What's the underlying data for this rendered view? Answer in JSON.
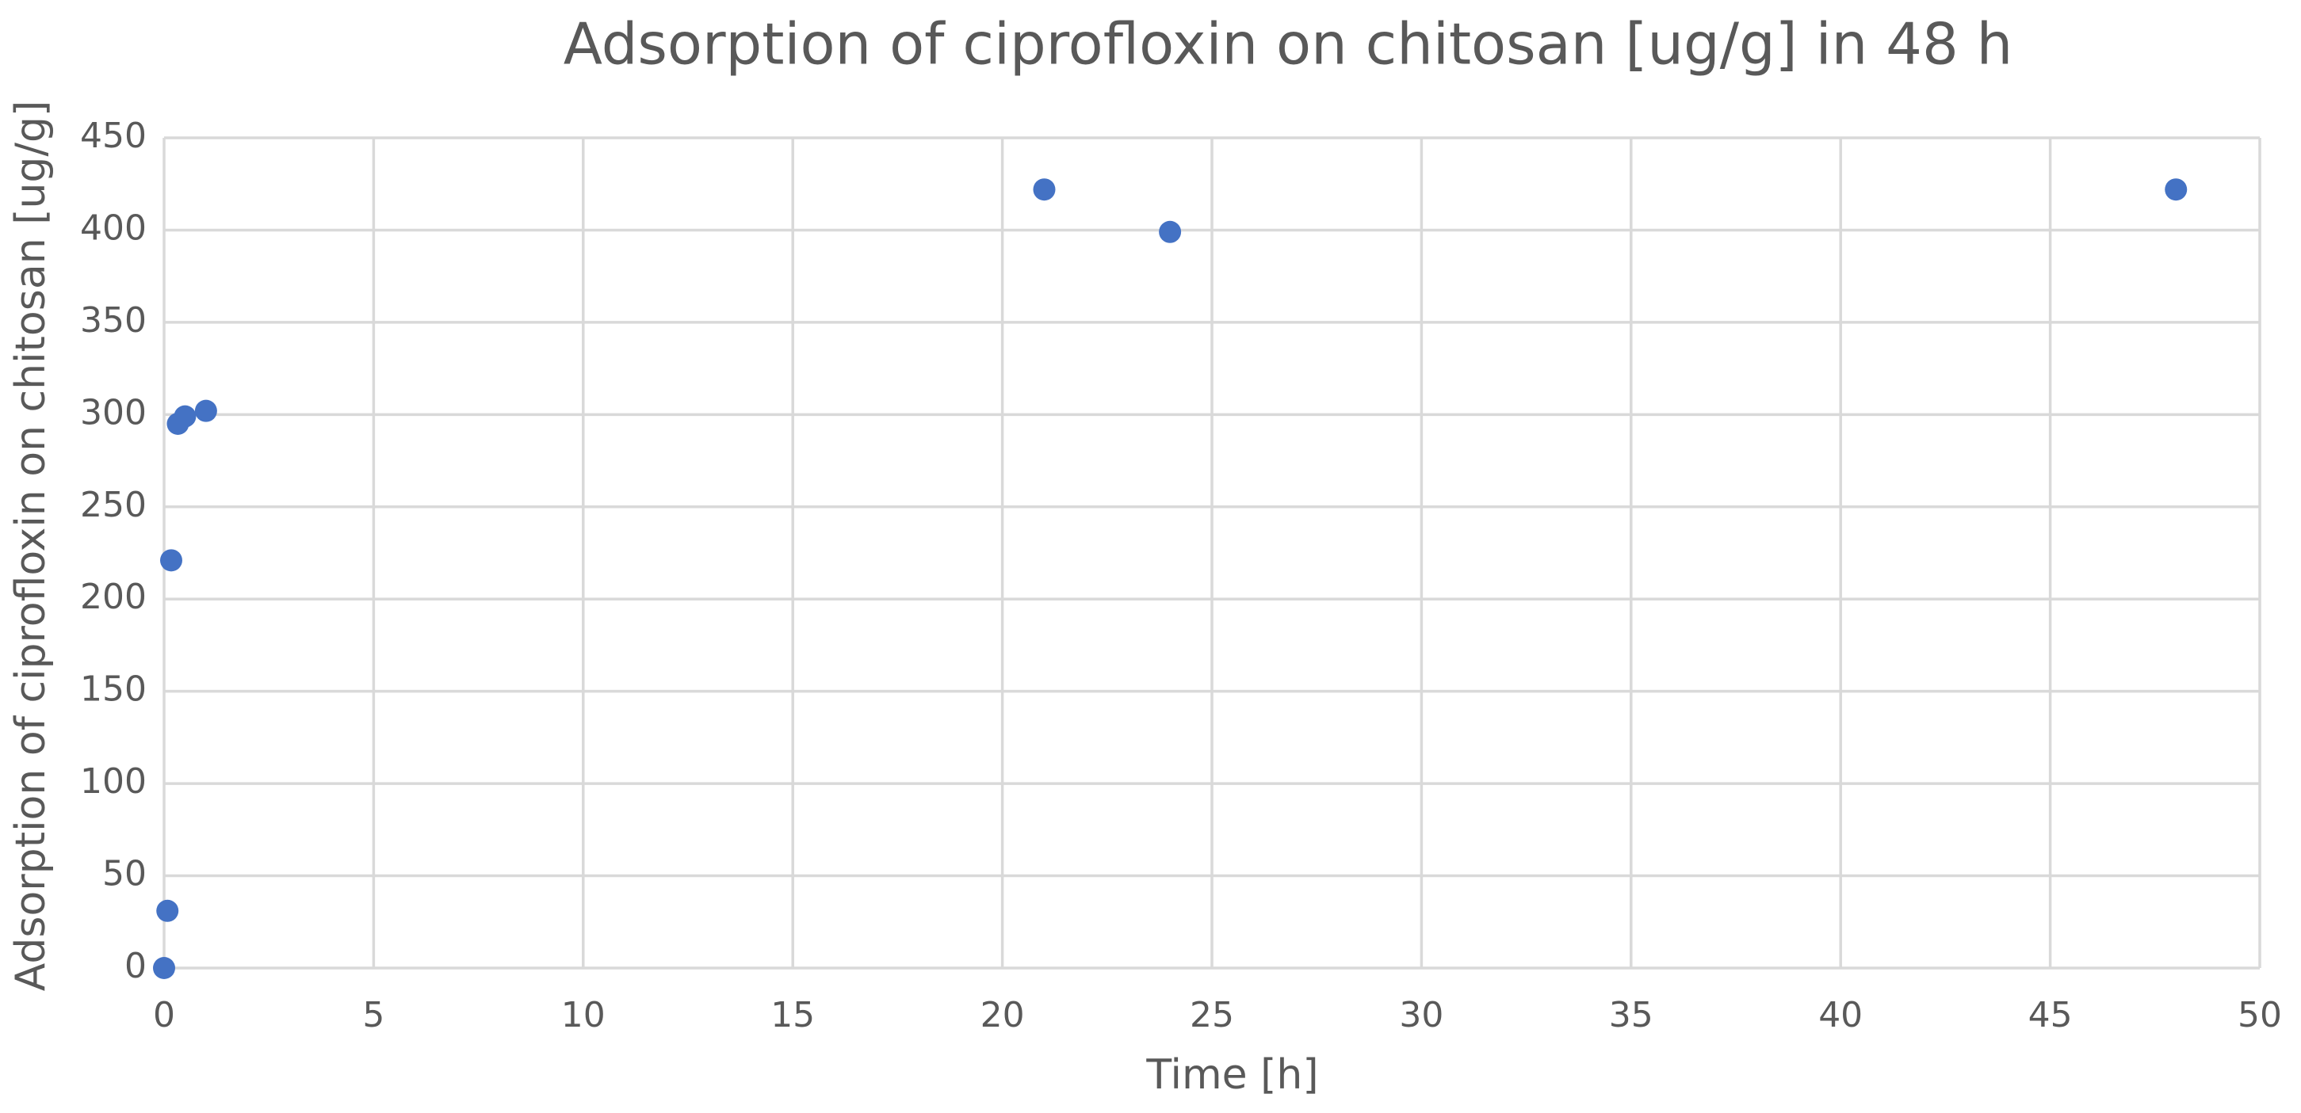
{
  "chart_data": {
    "type": "scatter",
    "title": "Adsorption of ciprofloxin on chitosan [ug/g] in 48 h",
    "x_label": "Time  [h]",
    "y_label": "Adsorption of ciprofloxin on chitosan [ug/g]",
    "x": [
      0,
      0.08,
      0.17,
      0.33,
      0.5,
      1,
      21,
      24,
      48
    ],
    "values": [
      0,
      31,
      221,
      295,
      299,
      302,
      422,
      399,
      422
    ],
    "color": "#4472c4",
    "xlim": [
      0,
      50
    ],
    "xticks": [
      0,
      5,
      10,
      15,
      20,
      25,
      30,
      35,
      40,
      45,
      50
    ],
    "ylim": [
      0,
      450
    ],
    "yticks": [
      0,
      50,
      100,
      150,
      200,
      250,
      300,
      350,
      400,
      450
    ],
    "grid": true
  }
}
